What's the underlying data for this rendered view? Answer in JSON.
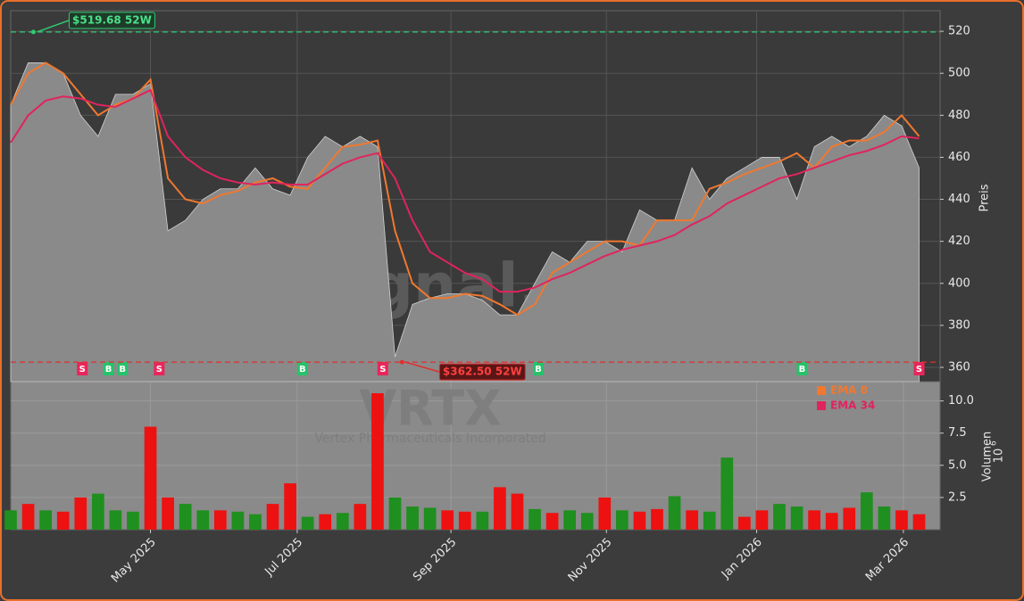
{
  "chart_data": {
    "type": "line",
    "watermark": "forexsignal.trade",
    "ticker": "VRTX",
    "company": "Vertex Pharmaceuticals Incorporated",
    "ylabel": "Preis",
    "y2label": "Volumen",
    "y2label_exponent": "6",
    "x": [
      0,
      1,
      2,
      3,
      4,
      5,
      6,
      7,
      8,
      9,
      10,
      11,
      12,
      13,
      14,
      15,
      16,
      17,
      18,
      19,
      20,
      21,
      22,
      23,
      24,
      25,
      26,
      27,
      28,
      29,
      30,
      31,
      32,
      33,
      34,
      35,
      36,
      37,
      38,
      39,
      40,
      41,
      42,
      43,
      44,
      45,
      46,
      47,
      48,
      49,
      50,
      51,
      52
    ],
    "xlim": [
      0,
      53.2
    ],
    "xticks": [
      {
        "value": 8.0,
        "label": "May 2025"
      },
      {
        "value": 16.4,
        "label": "Jul 2025"
      },
      {
        "value": 25.2,
        "label": "Sep 2025"
      },
      {
        "value": 34.1,
        "label": "Nov 2025"
      },
      {
        "value": 42.7,
        "label": "Jan 2026"
      },
      {
        "value": 51.1,
        "label": "Mar 2026"
      }
    ],
    "ylim": [
      353.2,
      529.8
    ],
    "yticks": [
      360,
      380,
      400,
      420,
      440,
      460,
      480,
      500,
      520
    ],
    "grid": true,
    "legend": "upper right",
    "price": {
      "color": "#8a8a8a",
      "values": [
        485,
        505,
        505,
        500,
        480,
        470,
        490,
        490,
        495,
        425,
        430,
        440,
        445,
        445,
        455,
        445,
        442,
        460,
        470,
        465,
        470,
        465,
        365,
        390,
        393,
        395,
        395,
        392,
        385,
        385,
        400,
        415,
        410,
        420,
        420,
        415,
        435,
        430,
        430,
        455,
        440,
        450,
        455,
        460,
        460,
        440,
        465,
        470,
        465,
        470,
        480,
        475,
        455
      ]
    },
    "series": [
      {
        "name": "EMA 8",
        "color": "#f07830",
        "values": [
          485,
          500,
          505,
          500,
          490,
          480,
          485,
          488,
          497,
          450,
          440,
          438,
          442,
          444,
          448,
          450,
          446,
          445,
          455,
          465,
          466,
          468,
          425,
          400,
          393,
          393,
          395,
          394,
          390,
          385,
          390,
          405,
          410,
          415,
          420,
          420,
          418,
          430,
          430,
          430,
          445,
          448,
          452,
          455,
          458,
          462,
          455,
          465,
          468,
          468,
          472,
          480,
          470
        ]
      },
      {
        "name": "EMA 34",
        "color": "#e0245e",
        "values": [
          467,
          480,
          487,
          489,
          488,
          485,
          484,
          488,
          492,
          470,
          460,
          454,
          450,
          448,
          447,
          448,
          447,
          447,
          452,
          457,
          460,
          462,
          450,
          430,
          415,
          410,
          405,
          402,
          396,
          396,
          398,
          402,
          405,
          409,
          413,
          416,
          418,
          420,
          423,
          428,
          432,
          438,
          442,
          446,
          450,
          452,
          455,
          458,
          461,
          463,
          466,
          470,
          469
        ]
      }
    ],
    "volume": {
      "ylim": [
        0,
        11.5
      ],
      "yticks": [
        2.5,
        {
          "value": 5,
          "label": "5.0"
        },
        7.5,
        {
          "value": 10,
          "label": "10.0"
        }
      ],
      "values": [
        1.5,
        2.0,
        1.5,
        1.4,
        2.5,
        2.8,
        1.5,
        1.4,
        8.0,
        2.5,
        2.0,
        1.5,
        1.5,
        1.4,
        1.2,
        2.0,
        3.6,
        1.0,
        1.2,
        1.3,
        2.0,
        10.6,
        2.5,
        1.8,
        1.7,
        1.5,
        1.4,
        1.4,
        3.3,
        2.8,
        1.6,
        1.3,
        1.5,
        1.3,
        2.5,
        1.5,
        1.4,
        1.6,
        2.6,
        1.5,
        1.4,
        5.6,
        1.0,
        1.5,
        2.0,
        1.8,
        1.5,
        1.3,
        1.7,
        2.9,
        1.8,
        1.5,
        1.2
      ],
      "colors": [
        "#1f8f1f",
        "#ee1111",
        "#1f8f1f",
        "#ee1111",
        "#ee1111",
        "#1f8f1f",
        "#1f8f1f",
        "#1f8f1f",
        "#ee1111",
        "#ee1111",
        "#1f8f1f",
        "#1f8f1f",
        "#ee1111",
        "#1f8f1f",
        "#1f8f1f",
        "#ee1111",
        "#ee1111",
        "#1f8f1f",
        "#ee1111",
        "#1f8f1f",
        "#ee1111",
        "#ee1111",
        "#1f8f1f",
        "#1f8f1f",
        "#1f8f1f",
        "#ee1111",
        "#ee1111",
        "#1f8f1f",
        "#ee1111",
        "#ee1111",
        "#1f8f1f",
        "#ee1111",
        "#1f8f1f",
        "#1f8f1f",
        "#ee1111",
        "#1f8f1f",
        "#ee1111",
        "#ee1111",
        "#1f8f1f",
        "#ee1111",
        "#1f8f1f",
        "#1f8f1f",
        "#ee1111",
        "#ee1111",
        "#1f8f1f",
        "#1f8f1f",
        "#ee1111",
        "#ee1111",
        "#ee1111",
        "#1f8f1f",
        "#1f8f1f",
        "#ee1111",
        "#ee1111"
      ]
    },
    "signals": [
      {
        "x": 4.1,
        "label": "S",
        "color": "#e8265a"
      },
      {
        "x": 5.6,
        "label": "B",
        "color": "#27c26a"
      },
      {
        "x": 6.4,
        "label": "B",
        "color": "#27c26a"
      },
      {
        "x": 8.5,
        "label": "S",
        "color": "#e8265a"
      },
      {
        "x": 16.7,
        "label": "B",
        "color": "#27c26a"
      },
      {
        "x": 21.3,
        "label": "S",
        "color": "#e8265a"
      },
      {
        "x": 30.2,
        "label": "B",
        "color": "#27c26a"
      },
      {
        "x": 45.3,
        "label": "B",
        "color": "#27c26a"
      },
      {
        "x": 52.0,
        "label": "S",
        "color": "#e8265a"
      }
    ],
    "annotations": [
      {
        "value": 519.68,
        "x": 1.3,
        "label": "$519.68 52W",
        "color": "#2ecc71"
      },
      {
        "value": 362.5,
        "x": 22.4,
        "label": "$362.50 52W",
        "color": "#e03030"
      }
    ]
  }
}
